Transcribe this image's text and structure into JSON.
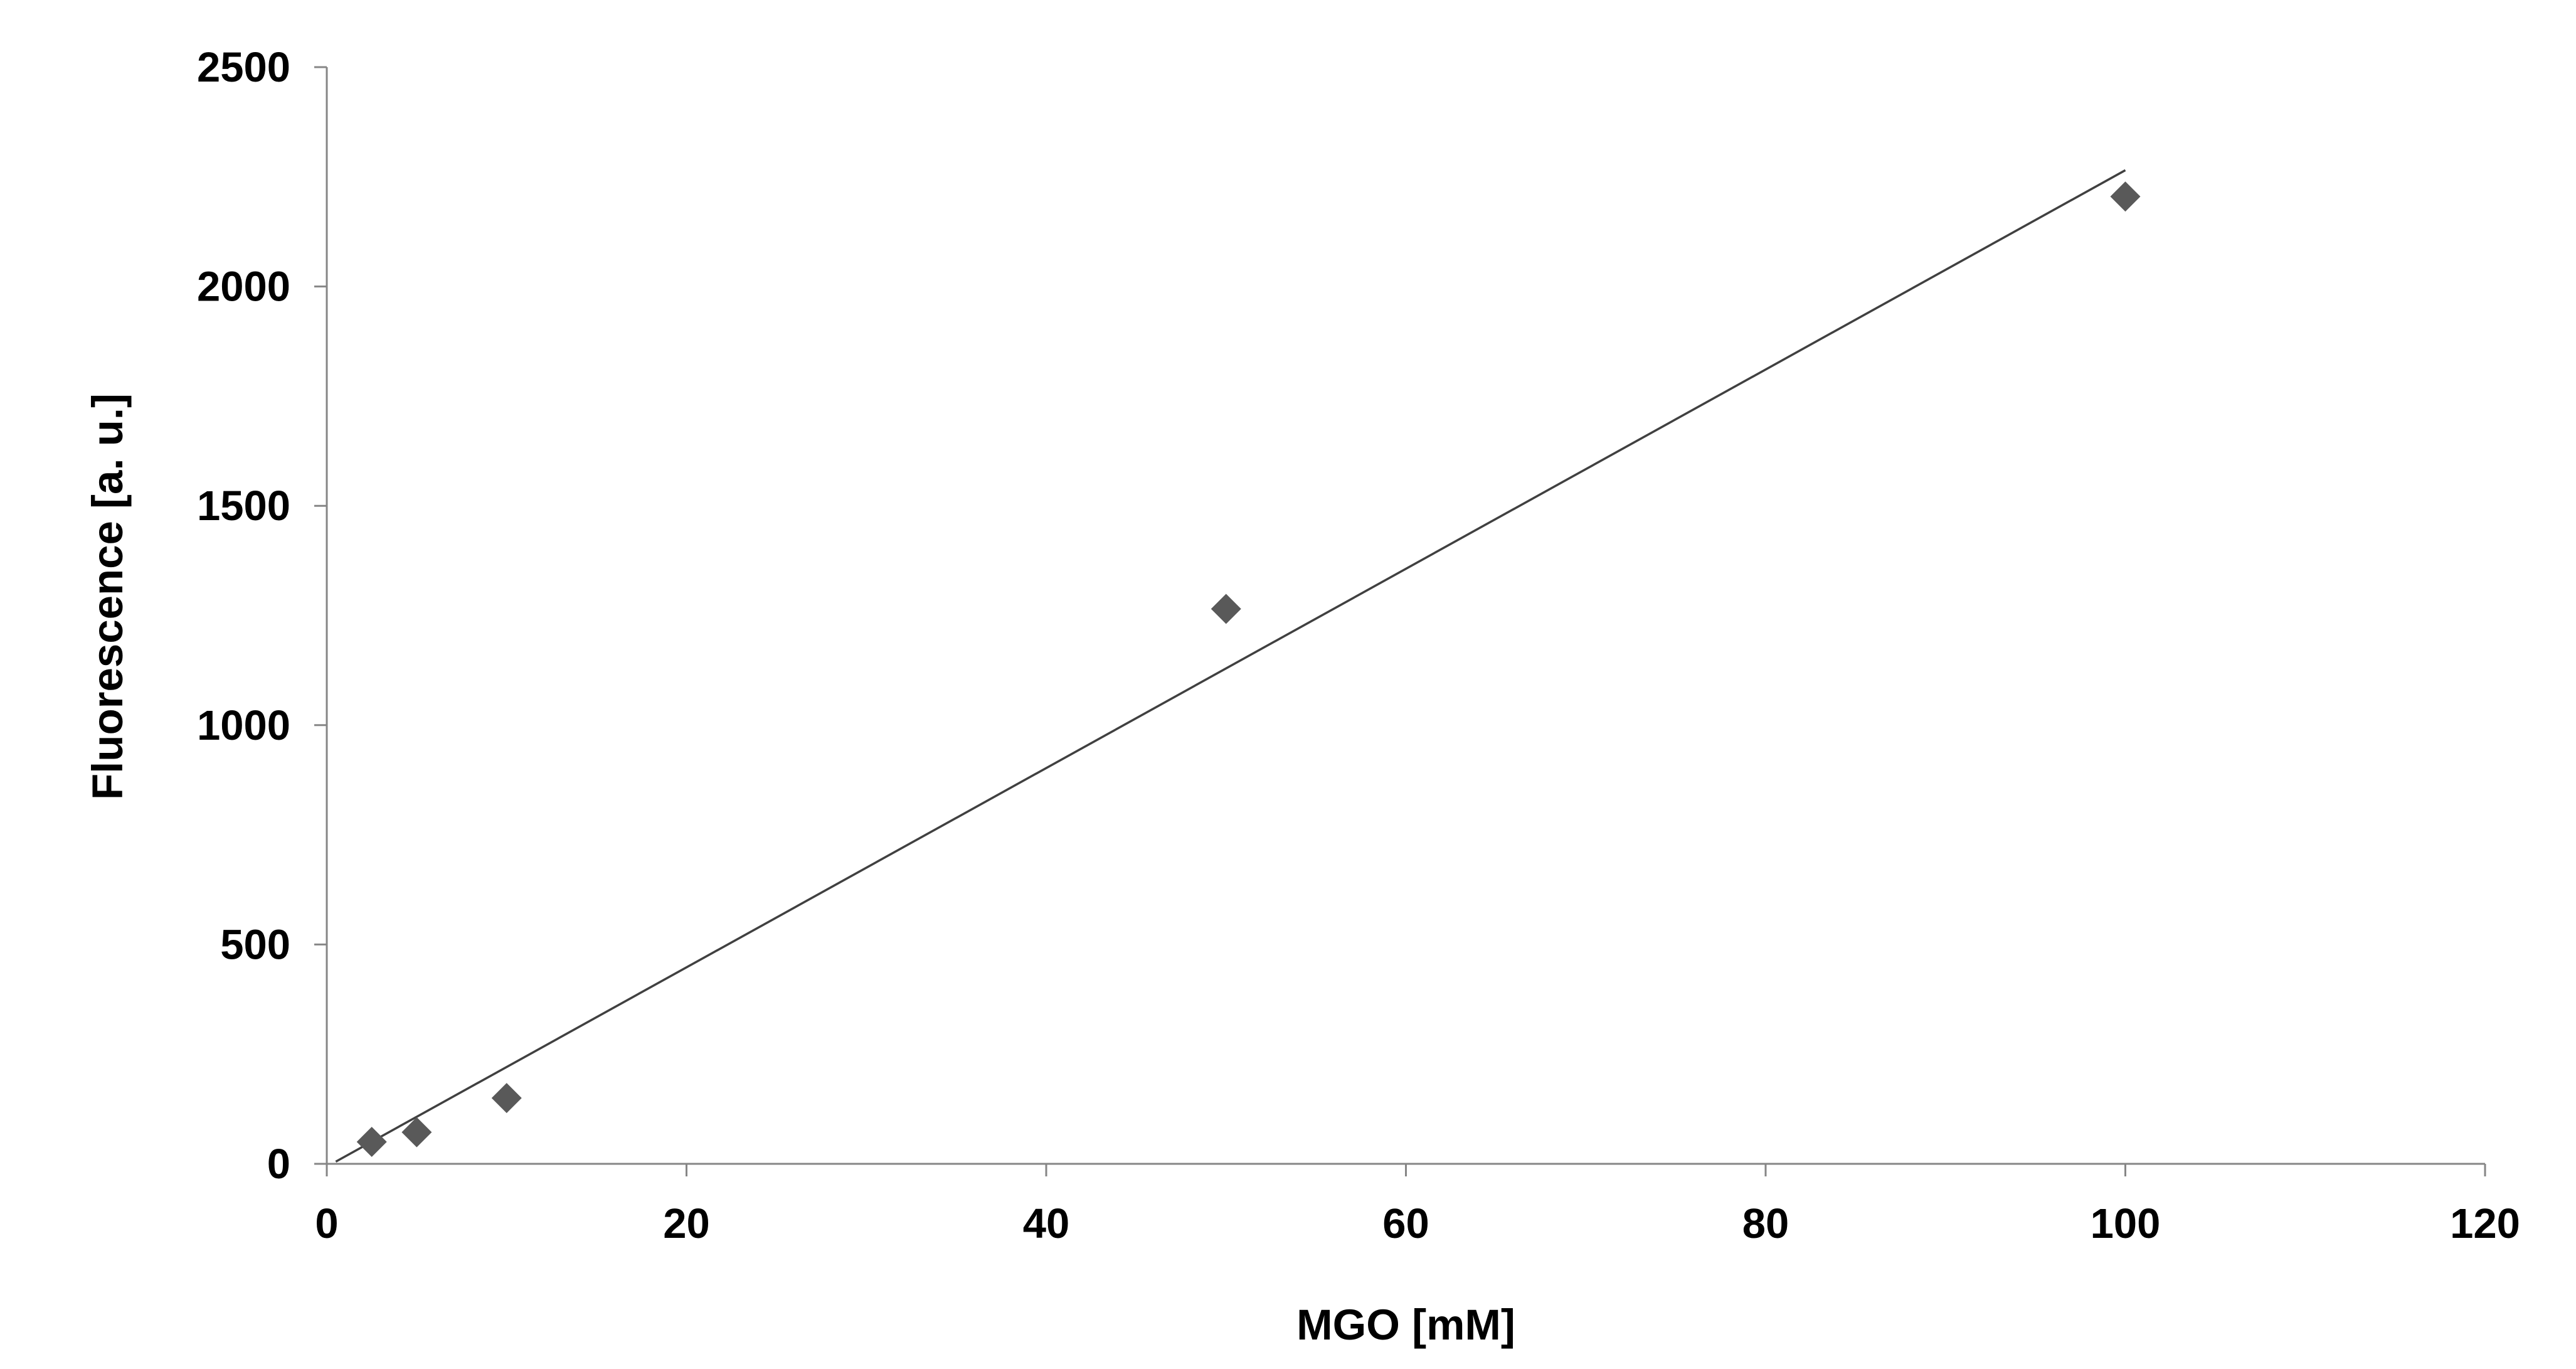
{
  "chart_data": {
    "type": "scatter",
    "title": "",
    "xlabel": "MGO [mM]",
    "ylabel": "Fluorescence [a. u.]",
    "xlim": [
      0,
      120
    ],
    "ylim": [
      0,
      2500
    ],
    "x_ticks": [
      0,
      20,
      40,
      60,
      80,
      100,
      120
    ],
    "y_ticks": [
      0,
      500,
      1000,
      1500,
      2000,
      2500
    ],
    "grid": false,
    "legend": "none",
    "series": [
      {
        "marker": "diamond",
        "color": "#595959",
        "points": [
          {
            "x": 2.5,
            "y": 50
          },
          {
            "x": 5,
            "y": 72
          },
          {
            "x": 10,
            "y": 150
          },
          {
            "x": 50,
            "y": 1265
          },
          {
            "x": 100,
            "y": 2205
          }
        ]
      }
    ],
    "trendline": {
      "type": "linear",
      "color": "#404040",
      "from": {
        "x": 0.5,
        "y": 5
      },
      "to": {
        "x": 100,
        "y": 2265
      }
    }
  }
}
